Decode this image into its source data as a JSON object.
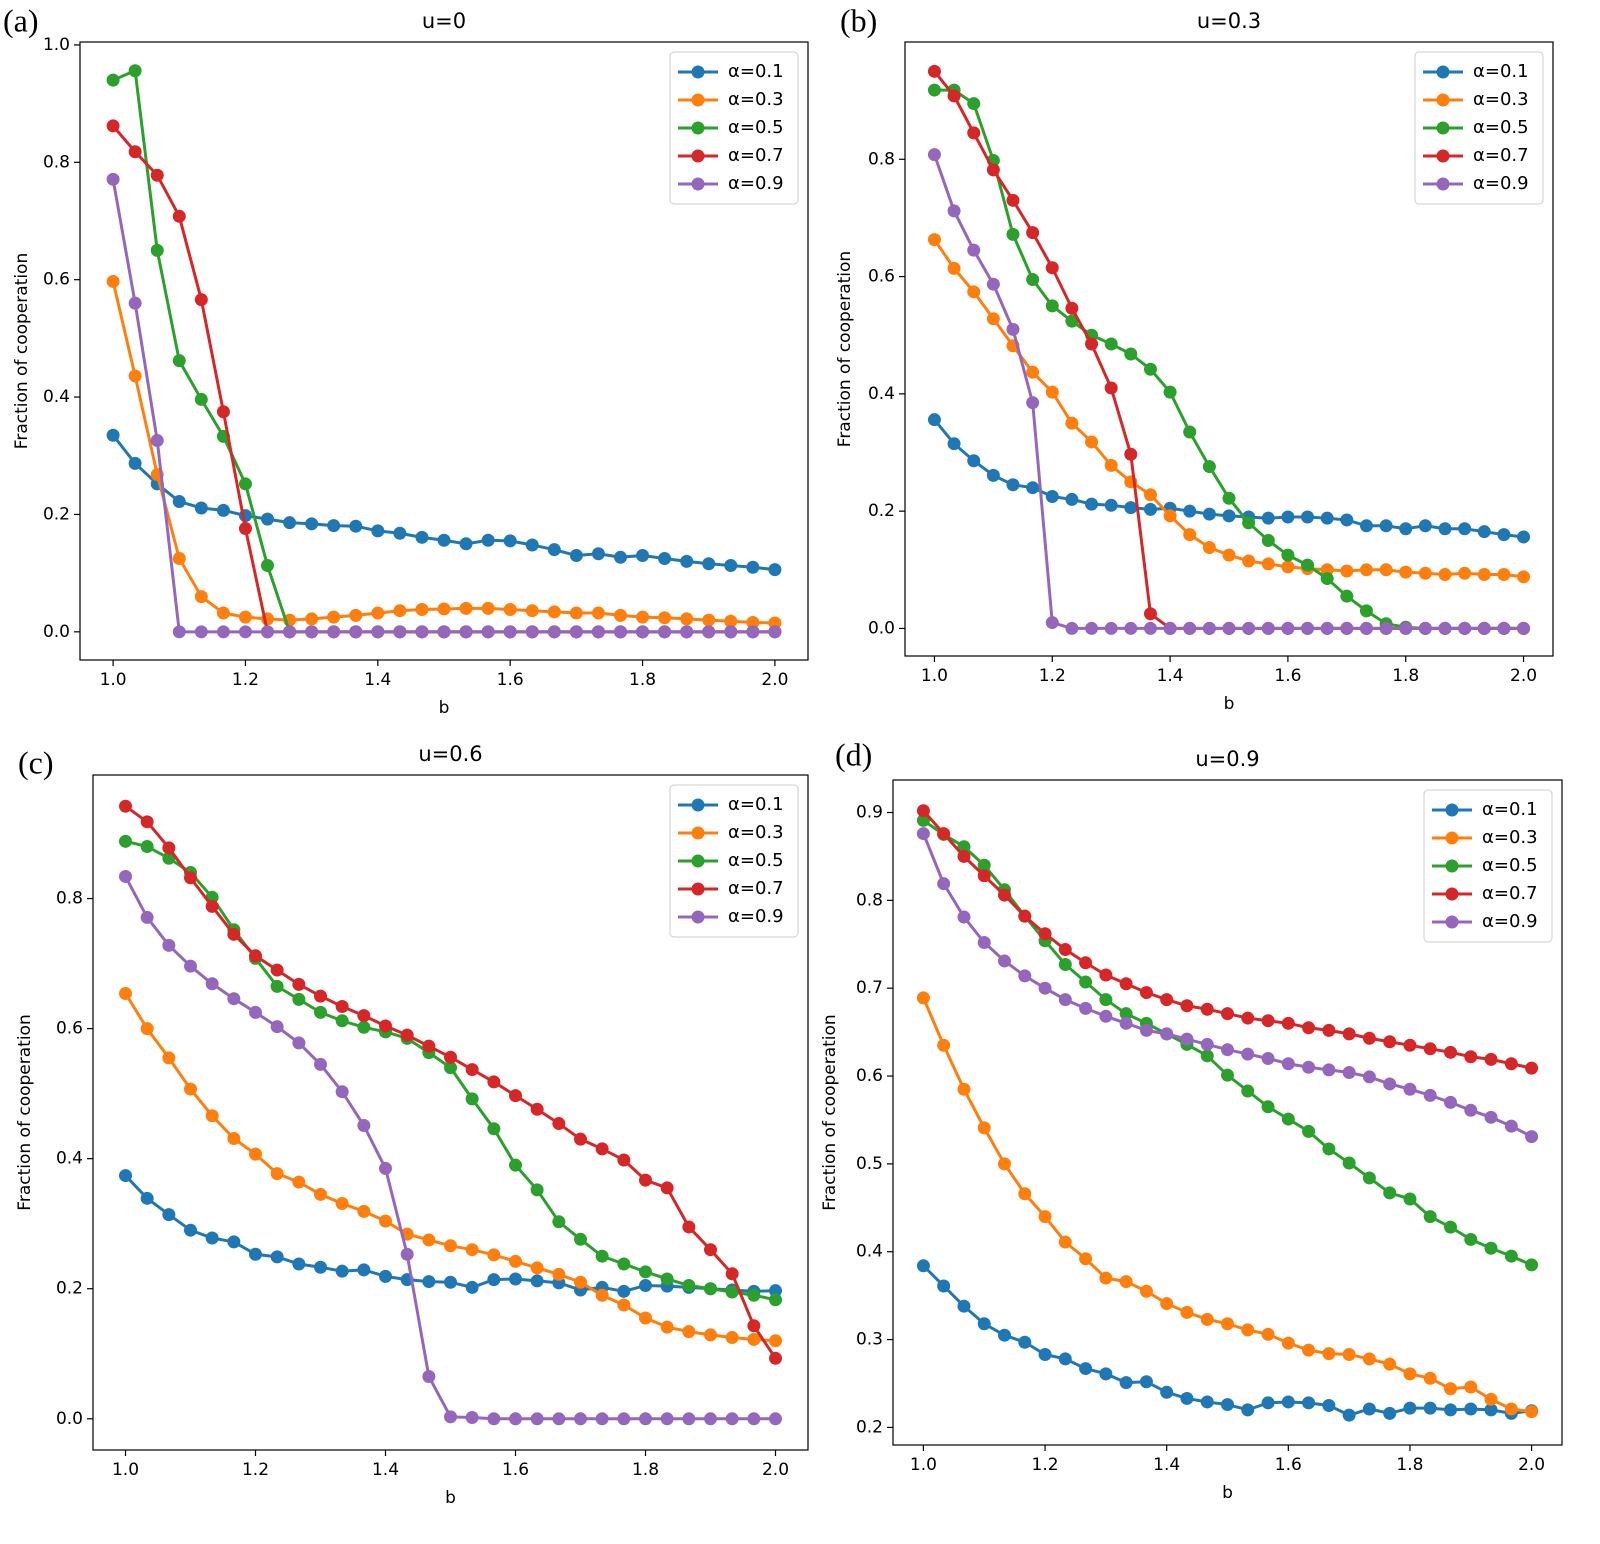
{
  "chart_data": [
    {
      "type": "line",
      "panel_label": "(a)",
      "title": "u=0",
      "x_label": "b",
      "y_label": "Fraction of cooperation",
      "x": [
        1,
        1.0333,
        1.0667,
        1.1,
        1.1333,
        1.1667,
        1.2,
        1.2333,
        1.2667,
        1.3,
        1.3333,
        1.3667,
        1.4,
        1.4333,
        1.4667,
        1.5,
        1.5333,
        1.5667,
        1.6,
        1.6333,
        1.6667,
        1.7,
        1.7333,
        1.7667,
        1.8,
        1.8333,
        1.8667,
        1.9,
        1.9333,
        1.9667,
        2
      ],
      "series": [
        {
          "name": "α=0.1",
          "color": "#1f77b4",
          "values": [
            0.335,
            0.287,
            0.252,
            0.222,
            0.211,
            0.207,
            0.198,
            0.192,
            0.186,
            0.184,
            0.181,
            0.18,
            0.172,
            0.168,
            0.161,
            0.156,
            0.15,
            0.156,
            0.155,
            0.148,
            0.14,
            0.13,
            0.133,
            0.127,
            0.13,
            0.125,
            0.12,
            0.116,
            0.113,
            0.11,
            0.106
          ]
        },
        {
          "name": "α=0.3",
          "color": "#ff7f0e",
          "values": [
            0.597,
            0.436,
            0.268,
            0.125,
            0.06,
            0.032,
            0.025,
            0.022,
            0.02,
            0.022,
            0.025,
            0.028,
            0.032,
            0.036,
            0.038,
            0.039,
            0.04,
            0.04,
            0.038,
            0.036,
            0.034,
            0.032,
            0.032,
            0.028,
            0.025,
            0.024,
            0.022,
            0.02,
            0.018,
            0.016,
            0.015
          ]
        },
        {
          "name": "α=0.5",
          "color": "#2ca02c",
          "values": [
            0.94,
            0.956,
            0.65,
            0.462,
            0.396,
            0.333,
            0.252,
            0.113,
            0,
            0,
            0,
            0,
            0,
            0,
            0,
            0,
            0,
            0,
            0,
            0,
            0,
            0,
            0,
            0,
            0,
            0,
            0,
            0,
            0,
            0,
            0
          ]
        },
        {
          "name": "α=0.7",
          "color": "#d62728",
          "values": [
            0.862,
            0.818,
            0.778,
            0.708,
            0.566,
            0.375,
            0.176,
            0,
            0,
            0,
            0,
            0,
            0,
            0,
            0,
            0,
            0,
            0,
            0,
            0,
            0,
            0,
            0,
            0,
            0,
            0,
            0,
            0,
            0,
            0,
            0
          ]
        },
        {
          "name": "α=0.9",
          "color": "#9467bd",
          "values": [
            0.771,
            0.56,
            0.326,
            0,
            0,
            0,
            0,
            0,
            0,
            0,
            0,
            0,
            0,
            0,
            0,
            0,
            0,
            0,
            0,
            0,
            0,
            0,
            0,
            0,
            0,
            0,
            0,
            0,
            0,
            0,
            0
          ]
        }
      ],
      "xlim": [
        0.95,
        2.05
      ],
      "xticks": [
        {
          "value": 1,
          "label": "1.0"
        },
        1.2,
        1.4,
        1.6,
        1.8,
        {
          "value": 2,
          "label": "2.0"
        }
      ],
      "ylim": [
        -0.048,
        1.005
      ],
      "yticks": [
        {
          "value": 0,
          "label": "0.0"
        },
        0.2,
        0.4,
        0.6,
        0.8,
        {
          "value": 1,
          "label": "1.0"
        }
      ],
      "legend": "upper right"
    },
    {
      "type": "line",
      "panel_label": "(b)",
      "title": "u=0.3",
      "x_label": "b",
      "y_label": "Fraction of cooperation",
      "x": [
        1,
        1.0333,
        1.0667,
        1.1,
        1.1333,
        1.1667,
        1.2,
        1.2333,
        1.2667,
        1.3,
        1.3333,
        1.3667,
        1.4,
        1.4333,
        1.4667,
        1.5,
        1.5333,
        1.5667,
        1.6,
        1.6333,
        1.6667,
        1.7,
        1.7333,
        1.7667,
        1.8,
        1.8333,
        1.8667,
        1.9,
        1.9333,
        1.9667,
        2
      ],
      "series": [
        {
          "name": "α=0.1",
          "color": "#1f77b4",
          "values": [
            0.356,
            0.315,
            0.286,
            0.261,
            0.245,
            0.24,
            0.225,
            0.22,
            0.212,
            0.21,
            0.206,
            0.203,
            0.205,
            0.2,
            0.195,
            0.192,
            0.19,
            0.188,
            0.19,
            0.19,
            0.188,
            0.185,
            0.175,
            0.175,
            0.17,
            0.175,
            0.17,
            0.17,
            0.165,
            0.16,
            0.156
          ]
        },
        {
          "name": "α=0.3",
          "color": "#ff7f0e",
          "values": [
            0.663,
            0.614,
            0.574,
            0.528,
            0.482,
            0.437,
            0.403,
            0.35,
            0.318,
            0.278,
            0.25,
            0.228,
            0.192,
            0.16,
            0.138,
            0.125,
            0.115,
            0.11,
            0.105,
            0.102,
            0.1,
            0.098,
            0.1,
            0.1,
            0.096,
            0.094,
            0.092,
            0.094,
            0.092,
            0.092,
            0.088
          ]
        },
        {
          "name": "α=0.5",
          "color": "#2ca02c",
          "values": [
            0.918,
            0.918,
            0.895,
            0.798,
            0.672,
            0.595,
            0.55,
            0.524,
            0.5,
            0.485,
            0.468,
            0.442,
            0.403,
            0.335,
            0.276,
            0.222,
            0.18,
            0.15,
            0.125,
            0.108,
            0.085,
            0.055,
            0.03,
            0.008,
            0.002,
            0,
            0,
            0,
            0,
            0,
            0
          ]
        },
        {
          "name": "α=0.7",
          "color": "#d62728",
          "values": [
            0.95,
            0.908,
            0.845,
            0.782,
            0.73,
            0.675,
            0.615,
            0.546,
            0.485,
            0.41,
            0.297,
            0.025,
            0,
            0,
            0,
            0,
            0,
            0,
            0,
            0,
            0,
            0,
            0,
            0,
            0,
            0,
            0,
            0,
            0,
            0,
            0
          ]
        },
        {
          "name": "α=0.9",
          "color": "#9467bd",
          "values": [
            0.808,
            0.712,
            0.645,
            0.587,
            0.51,
            0.385,
            0.01,
            0,
            0,
            0,
            0,
            0,
            0,
            0,
            0,
            0,
            0,
            0,
            0,
            0,
            0,
            0,
            0,
            0,
            0,
            0,
            0,
            0,
            0,
            0,
            0
          ]
        }
      ],
      "xlim": [
        0.95,
        2.05
      ],
      "xticks": [
        {
          "value": 1,
          "label": "1.0"
        },
        1.2,
        1.4,
        1.6,
        1.8,
        {
          "value": 2,
          "label": "2.0"
        }
      ],
      "ylim": [
        -0.047,
        1.0
      ],
      "yticks": [
        {
          "value": 0,
          "label": "0.0"
        },
        0.2,
        0.4,
        0.6,
        0.8
      ],
      "legend": "upper right"
    },
    {
      "type": "line",
      "panel_label": "(c)",
      "title": "u=0.6",
      "x_label": "b",
      "y_label": "Fraction of cooperation",
      "x": [
        1,
        1.0333,
        1.0667,
        1.1,
        1.1333,
        1.1667,
        1.2,
        1.2333,
        1.2667,
        1.3,
        1.3333,
        1.3667,
        1.4,
        1.4333,
        1.4667,
        1.5,
        1.5333,
        1.5667,
        1.6,
        1.6333,
        1.6667,
        1.7,
        1.7333,
        1.7667,
        1.8,
        1.8333,
        1.8667,
        1.9,
        1.9333,
        1.9667,
        2
      ],
      "series": [
        {
          "name": "α=0.1",
          "color": "#1f77b4",
          "values": [
            0.374,
            0.339,
            0.314,
            0.29,
            0.278,
            0.272,
            0.253,
            0.249,
            0.238,
            0.233,
            0.227,
            0.229,
            0.219,
            0.214,
            0.211,
            0.21,
            0.202,
            0.214,
            0.215,
            0.212,
            0.209,
            0.198,
            0.202,
            0.196,
            0.205,
            0.204,
            0.202,
            0.2,
            0.198,
            0.196,
            0.197
          ]
        },
        {
          "name": "α=0.3",
          "color": "#ff7f0e",
          "values": [
            0.654,
            0.6,
            0.555,
            0.507,
            0.466,
            0.431,
            0.407,
            0.377,
            0.364,
            0.345,
            0.331,
            0.319,
            0.304,
            0.284,
            0.275,
            0.266,
            0.26,
            0.252,
            0.242,
            0.232,
            0.222,
            0.21,
            0.19,
            0.175,
            0.155,
            0.141,
            0.134,
            0.129,
            0.125,
            0.122,
            0.12
          ]
        },
        {
          "name": "α=0.5",
          "color": "#2ca02c",
          "values": [
            0.888,
            0.88,
            0.862,
            0.84,
            0.802,
            0.752,
            0.708,
            0.665,
            0.645,
            0.625,
            0.612,
            0.602,
            0.595,
            0.585,
            0.563,
            0.54,
            0.492,
            0.446,
            0.39,
            0.352,
            0.303,
            0.276,
            0.25,
            0.238,
            0.226,
            0.215,
            0.205,
            0.2,
            0.195,
            0.19,
            0.183
          ]
        },
        {
          "name": "α=0.7",
          "color": "#d62728",
          "values": [
            0.942,
            0.918,
            0.878,
            0.832,
            0.788,
            0.745,
            0.712,
            0.69,
            0.668,
            0.65,
            0.634,
            0.62,
            0.604,
            0.59,
            0.573,
            0.556,
            0.537,
            0.518,
            0.497,
            0.476,
            0.454,
            0.43,
            0.415,
            0.398,
            0.367,
            0.355,
            0.295,
            0.26,
            0.223,
            0.143,
            0.093
          ]
        },
        {
          "name": "α=0.9",
          "color": "#9467bd",
          "values": [
            0.834,
            0.771,
            0.728,
            0.696,
            0.669,
            0.646,
            0.625,
            0.603,
            0.578,
            0.545,
            0.503,
            0.451,
            0.385,
            0.253,
            0.065,
            0.003,
            0.002,
            0,
            0,
            0,
            0,
            0,
            0,
            0,
            0,
            0,
            0,
            0,
            0,
            0,
            0
          ]
        }
      ],
      "xlim": [
        0.95,
        2.05
      ],
      "xticks": [
        {
          "value": 1,
          "label": "1.0"
        },
        1.2,
        1.4,
        1.6,
        1.8,
        {
          "value": 2,
          "label": "2.0"
        }
      ],
      "ylim": [
        -0.048,
        0.99
      ],
      "yticks": [
        {
          "value": 0,
          "label": "0.0"
        },
        0.2,
        0.4,
        0.6,
        0.8
      ],
      "legend": "upper right"
    },
    {
      "type": "line",
      "panel_label": "(d)",
      "title": "u=0.9",
      "x_label": "b",
      "y_label": "Fraction of cooperation",
      "x": [
        1,
        1.0333,
        1.0667,
        1.1,
        1.1333,
        1.1667,
        1.2,
        1.2333,
        1.2667,
        1.3,
        1.3333,
        1.3667,
        1.4,
        1.4333,
        1.4667,
        1.5,
        1.5333,
        1.5667,
        1.6,
        1.6333,
        1.6667,
        1.7,
        1.7333,
        1.7667,
        1.8,
        1.8333,
        1.8667,
        1.9,
        1.9333,
        1.9667,
        2
      ],
      "series": [
        {
          "name": "α=0.1",
          "color": "#1f77b4",
          "values": [
            0.384,
            0.361,
            0.338,
            0.318,
            0.305,
            0.297,
            0.283,
            0.278,
            0.267,
            0.261,
            0.251,
            0.252,
            0.24,
            0.233,
            0.229,
            0.226,
            0.22,
            0.228,
            0.229,
            0.228,
            0.225,
            0.214,
            0.221,
            0.216,
            0.222,
            0.222,
            0.22,
            0.221,
            0.22,
            0.216,
            0.219
          ]
        },
        {
          "name": "α=0.3",
          "color": "#ff7f0e",
          "values": [
            0.689,
            0.635,
            0.585,
            0.541,
            0.5,
            0.466,
            0.44,
            0.411,
            0.392,
            0.37,
            0.366,
            0.355,
            0.341,
            0.331,
            0.323,
            0.318,
            0.311,
            0.306,
            0.296,
            0.288,
            0.284,
            0.283,
            0.278,
            0.272,
            0.261,
            0.256,
            0.244,
            0.246,
            0.232,
            0.221,
            0.218
          ]
        },
        {
          "name": "α=0.5",
          "color": "#2ca02c",
          "values": [
            0.891,
            0.875,
            0.861,
            0.84,
            0.812,
            0.782,
            0.754,
            0.727,
            0.707,
            0.687,
            0.671,
            0.66,
            0.648,
            0.636,
            0.623,
            0.601,
            0.583,
            0.565,
            0.551,
            0.537,
            0.517,
            0.501,
            0.484,
            0.467,
            0.46,
            0.44,
            0.428,
            0.414,
            0.404,
            0.395,
            0.385
          ]
        },
        {
          "name": "α=0.7",
          "color": "#d62728",
          "values": [
            0.902,
            0.876,
            0.85,
            0.828,
            0.806,
            0.782,
            0.762,
            0.744,
            0.729,
            0.715,
            0.705,
            0.695,
            0.687,
            0.68,
            0.676,
            0.671,
            0.666,
            0.663,
            0.66,
            0.655,
            0.652,
            0.648,
            0.643,
            0.639,
            0.635,
            0.631,
            0.627,
            0.622,
            0.619,
            0.614,
            0.609
          ]
        },
        {
          "name": "α=0.9",
          "color": "#9467bd",
          "values": [
            0.876,
            0.819,
            0.781,
            0.752,
            0.731,
            0.714,
            0.7,
            0.687,
            0.677,
            0.668,
            0.66,
            0.652,
            0.648,
            0.642,
            0.636,
            0.63,
            0.625,
            0.62,
            0.614,
            0.61,
            0.607,
            0.604,
            0.599,
            0.591,
            0.585,
            0.578,
            0.57,
            0.561,
            0.553,
            0.543,
            0.531
          ]
        }
      ],
      "xlim": [
        0.95,
        2.05
      ],
      "xticks": [
        {
          "value": 1,
          "label": "1.0"
        },
        1.2,
        1.4,
        1.6,
        1.8,
        {
          "value": 2,
          "label": "2.0"
        }
      ],
      "ylim": [
        0.18,
        0.937
      ],
      "yticks": [
        0.2,
        0.3,
        0.4,
        0.5,
        0.6,
        0.7,
        0.8,
        0.9
      ],
      "legend": "upper right"
    }
  ]
}
